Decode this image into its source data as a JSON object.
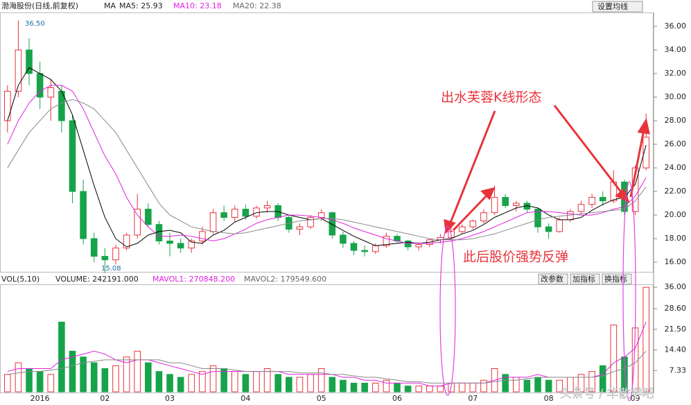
{
  "chart_data": {
    "type": "candlestick",
    "title": "渤海股份(日线,前复权)",
    "indicator": "MA",
    "button": "设置均线",
    "annotations": {
      "high": "36.50",
      "low": "15.08",
      "pattern": "出水芙蓉K线形态",
      "rebound": "此后股价强势反弹"
    },
    "watermark": "头条号 / 华散学吧",
    "up_color": "#e8333a",
    "down_color": "#17a34a",
    "categories": [
      null,
      null,
      null,
      "2016",
      null,
      null,
      null,
      null,
      null,
      "02",
      null,
      null,
      null,
      null,
      null,
      "03",
      null,
      null,
      null,
      null,
      null,
      null,
      "04",
      null,
      null,
      null,
      null,
      null,
      null,
      "05",
      null,
      null,
      null,
      null,
      null,
      null,
      "06",
      null,
      null,
      null,
      null,
      null,
      null,
      "07",
      null,
      null,
      null,
      null,
      null,
      null,
      "08",
      null,
      null,
      null,
      null,
      null,
      null,
      null,
      "09",
      null
    ],
    "ohlc": [
      [
        28,
        31,
        27,
        30.5
      ],
      [
        30.5,
        36.5,
        30,
        34
      ],
      [
        34,
        35,
        31,
        32
      ],
      [
        32,
        33,
        29,
        30
      ],
      [
        30,
        31.5,
        28,
        30.8
      ],
      [
        30.5,
        31,
        27,
        28
      ],
      [
        28,
        28.5,
        21,
        22
      ],
      [
        22,
        23,
        17.5,
        18
      ],
      [
        18,
        18.5,
        16,
        16.5
      ],
      [
        16.5,
        17.2,
        15.08,
        16.2
      ],
      [
        16.2,
        17.5,
        15.8,
        17.2
      ],
      [
        17.2,
        18.5,
        17,
        18.3
      ],
      [
        18.3,
        21.8,
        18,
        20.5
      ],
      [
        20.5,
        21,
        19,
        19.2
      ],
      [
        19.2,
        19.5,
        17.5,
        17.8
      ],
      [
        17.8,
        18.5,
        16.5,
        17.6
      ],
      [
        17.6,
        18,
        16.8,
        17.2
      ],
      [
        17.2,
        18,
        16.8,
        17.8
      ],
      [
        17.8,
        19,
        17.5,
        18.6
      ],
      [
        18.6,
        20.5,
        18.4,
        20.2
      ],
      [
        20.2,
        20.8,
        19.5,
        19.8
      ],
      [
        19.8,
        20.8,
        19.4,
        20.5
      ],
      [
        20.5,
        20.9,
        19.6,
        19.9
      ],
      [
        19.9,
        20.8,
        19.7,
        20.6
      ],
      [
        20.6,
        21.2,
        20.2,
        20.8
      ],
      [
        20.8,
        21,
        19.5,
        19.8
      ],
      [
        19.8,
        20,
        18.5,
        18.8
      ],
      [
        18.8,
        19.3,
        18.3,
        19
      ],
      [
        19,
        20,
        18.8,
        19.8
      ],
      [
        19.8,
        20.5,
        19.5,
        20.2
      ],
      [
        20.2,
        20.3,
        18,
        18.3
      ],
      [
        18.3,
        18.6,
        17.2,
        17.6
      ],
      [
        17.6,
        17.8,
        16.6,
        17
      ],
      [
        17,
        17.4,
        16.5,
        16.9
      ],
      [
        16.9,
        17.6,
        16.7,
        17.4
      ],
      [
        17.4,
        18.5,
        17.2,
        18.2
      ],
      [
        18.2,
        18.4,
        17.6,
        17.8
      ],
      [
        17.8,
        17.9,
        17,
        17.3
      ],
      [
        17.3,
        17.7,
        17,
        17.5
      ],
      [
        17.5,
        18,
        17.3,
        17.9
      ],
      [
        17.9,
        18.4,
        17.6,
        18.1
      ],
      [
        18.1,
        19,
        17.9,
        18.6
      ],
      [
        18.6,
        19.2,
        18.4,
        19
      ],
      [
        19,
        19.6,
        18.8,
        19.5
      ],
      [
        19.5,
        20.5,
        19.3,
        20.2
      ],
      [
        20.2,
        22.5,
        20,
        21.5
      ],
      [
        21.5,
        21.8,
        20.6,
        20.8
      ],
      [
        20.8,
        21.2,
        20.3,
        21
      ],
      [
        21,
        21.2,
        20.2,
        20.5
      ],
      [
        20.5,
        20.6,
        18.5,
        19
      ],
      [
        19,
        19.3,
        18,
        18.6
      ],
      [
        18.6,
        19.8,
        18.5,
        19.6
      ],
      [
        19.6,
        20.5,
        19.4,
        20.3
      ],
      [
        20.3,
        21.2,
        20.1,
        20.9
      ],
      [
        20.9,
        21.8,
        20.6,
        21.5
      ],
      [
        21.5,
        22,
        20.8,
        21.2
      ],
      [
        21.2,
        23.8,
        21,
        22.8
      ],
      [
        22.8,
        23,
        20,
        20.3
      ],
      [
        20.3,
        24.2,
        20,
        24
      ],
      [
        24,
        28.6,
        23.8,
        26.6
      ]
    ],
    "series": [
      {
        "name": "MA5",
        "label": "MA5: 25.93",
        "color": "#000000",
        "values": [
          28,
          31,
          32.5,
          32,
          31.5,
          30.5,
          28.5,
          25.5,
          22.5,
          19.8,
          18,
          17.3,
          17.6,
          18.3,
          18.6,
          18.7,
          18.5,
          17.7,
          17.6,
          18.3,
          18.7,
          19.4,
          19.8,
          20.2,
          20.3,
          20.3,
          20,
          19.8,
          19.6,
          19.7,
          19.2,
          18.7,
          18.2,
          17.8,
          17.4,
          17.5,
          17.6,
          17.7,
          17.6,
          17.7,
          17.9,
          18,
          18.4,
          18.7,
          19.2,
          19.8,
          20.2,
          20.6,
          20.8,
          20.6,
          20,
          19.6,
          19.6,
          19.8,
          20.4,
          20.9,
          21.3,
          21.5,
          22.6,
          25.93
        ]
      },
      {
        "name": "MA10",
        "label": "MA10: 23.18",
        "color": "#e020e0",
        "values": [
          26,
          28,
          29.5,
          30.5,
          31,
          31,
          30.5,
          29,
          27,
          25,
          23.5,
          21.5,
          20,
          19,
          18.2,
          18.2,
          18.3,
          18.2,
          18,
          17.8,
          18,
          18.4,
          18.8,
          19.3,
          19.6,
          19.8,
          20,
          20,
          19.9,
          19.8,
          19.6,
          19.3,
          18.9,
          18.6,
          18.3,
          18,
          17.8,
          17.6,
          17.6,
          17.6,
          17.7,
          17.8,
          18,
          18.3,
          18.6,
          19,
          19.4,
          19.8,
          20.2,
          20.3,
          20.3,
          20.2,
          20.1,
          20,
          20,
          20.2,
          20.5,
          20.7,
          21.6,
          23.18
        ]
      },
      {
        "name": "MA20",
        "label": "MA20: 22.38",
        "color": "#888888",
        "values": [
          24,
          25.5,
          27,
          28,
          29,
          29.5,
          29.8,
          29.5,
          29,
          28,
          27,
          25.5,
          24,
          22.5,
          21,
          20,
          19.5,
          19,
          18.8,
          18.6,
          18.5,
          18.4,
          18.5,
          18.7,
          18.9,
          19.1,
          19.3,
          19.5,
          19.6,
          19.7,
          19.7,
          19.6,
          19.4,
          19.2,
          19,
          18.8,
          18.6,
          18.4,
          18.2,
          18,
          17.9,
          17.9,
          17.9,
          18,
          18.2,
          18.4,
          18.7,
          19,
          19.3,
          19.6,
          19.8,
          19.9,
          20,
          20.1,
          20.2,
          20.3,
          20.4,
          20.5,
          21.2,
          22.38
        ]
      }
    ],
    "ylim": [
      15.3,
      37.06
    ],
    "yticks": [
      {
        "value": 16,
        "label": "16.00"
      },
      {
        "value": 18,
        "label": "18.00"
      },
      {
        "value": 20,
        "label": "20.00"
      },
      {
        "value": 22,
        "label": "22.00"
      },
      {
        "value": 24,
        "label": "24.00"
      },
      {
        "value": 26,
        "label": "26.00"
      },
      {
        "value": 28,
        "label": "28.00"
      },
      {
        "value": 30,
        "label": "30.00"
      },
      {
        "value": 32,
        "label": "32.00"
      },
      {
        "value": 34,
        "label": "34.00"
      },
      {
        "value": 36,
        "label": "36.00"
      }
    ],
    "volume": {
      "title": "VOL(5,10)",
      "label": "VOLUME: 242191.000",
      "buttons": [
        "改参数",
        "加指标",
        "换指标"
      ],
      "values": [
        6,
        10,
        8,
        7,
        6,
        24,
        14,
        12,
        10,
        8,
        9,
        12,
        14,
        10,
        7,
        6,
        5,
        6,
        7,
        9,
        8,
        7,
        6,
        7,
        8,
        6,
        5,
        5,
        6,
        8,
        5,
        4,
        3,
        3,
        3,
        4,
        3,
        2,
        2,
        2,
        2,
        3,
        3,
        3,
        4,
        8,
        6,
        5,
        4,
        5,
        4,
        4,
        5,
        6,
        7,
        9,
        23,
        12,
        22,
        36
      ],
      "series": [
        {
          "name": "MAVOL1",
          "label": "MAVOL1: 270848.200",
          "color": "#e020e0",
          "values": [
            7,
            8,
            8,
            8,
            8,
            11,
            12,
            13,
            14,
            13,
            11,
            10,
            11,
            11,
            10,
            9,
            8,
            7,
            6,
            7,
            7,
            7,
            7,
            7,
            7,
            7,
            6,
            6,
            6,
            6,
            6,
            5,
            5,
            4,
            4,
            3,
            3,
            3,
            3,
            2,
            2,
            3,
            3,
            3,
            3,
            4,
            5,
            5,
            5,
            6,
            5,
            5,
            5,
            5,
            5,
            6,
            10,
            12,
            15,
            24
          ]
        },
        {
          "name": "MAVOL2",
          "label": "MAVOL2: 179549.600",
          "color": "#888888",
          "values": [
            6,
            6.5,
            7,
            7,
            7.5,
            8,
            9,
            10,
            10.5,
            11,
            11,
            11,
            11,
            11,
            11,
            10,
            10,
            9,
            8,
            8,
            8,
            7.5,
            7,
            7,
            7,
            7,
            7,
            6.5,
            6.5,
            6.5,
            6,
            6,
            5.5,
            5,
            5,
            4.5,
            4,
            3.5,
            3.5,
            3,
            3,
            3,
            3,
            3,
            3,
            3.5,
            4,
            4,
            4.5,
            5,
            5,
            5,
            5,
            5,
            5,
            5.5,
            7,
            8,
            10,
            14
          ]
        }
      ],
      "ylim": [
        0,
        37
      ],
      "yticks": [
        {
          "value": 7.33,
          "label": "7.33"
        },
        {
          "value": 14.4,
          "label": "14.40"
        },
        {
          "value": 21.5,
          "label": "21.50"
        },
        {
          "value": 28.6,
          "label": "28.60"
        },
        {
          "value": 36,
          "label": "36.00"
        }
      ]
    }
  }
}
